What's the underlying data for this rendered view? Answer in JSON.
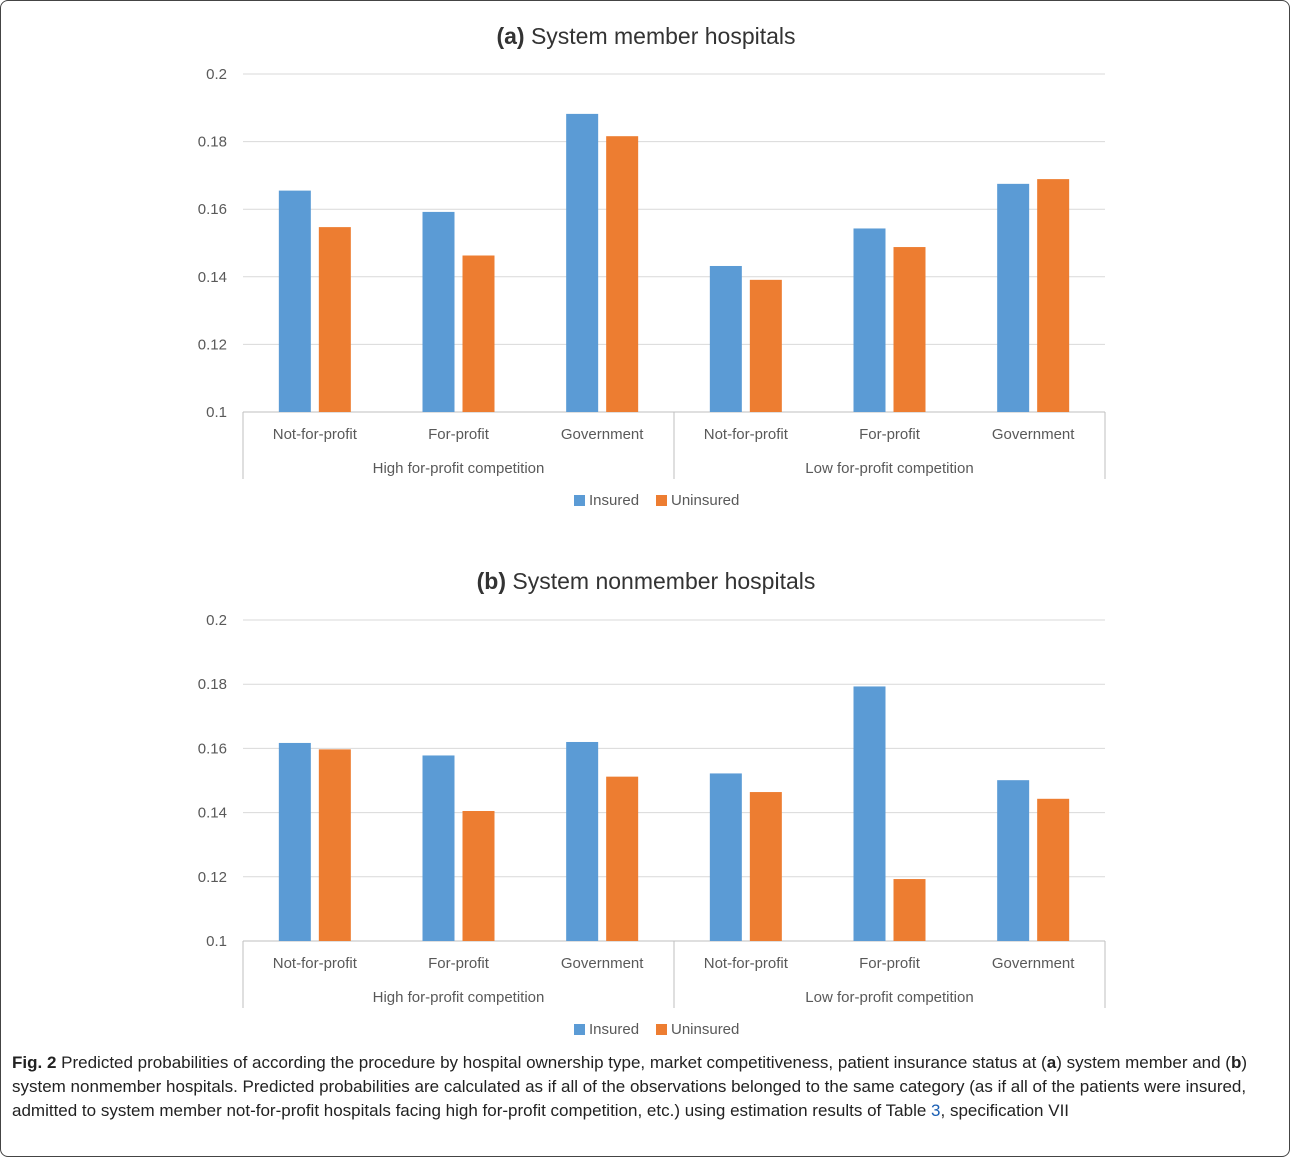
{
  "chart_data": [
    {
      "type": "bar",
      "title_prefix": "(a)",
      "title": "System member hospitals",
      "groups": [
        "High for-profit competition",
        "Low for-profit competition"
      ],
      "categories": [
        "Not-for-profit",
        "For-profit",
        "Government",
        "Not-for-profit",
        "For-profit",
        "Government"
      ],
      "series": [
        {
          "name": "Insured",
          "color": "#5b9bd5",
          "values": [
            0.1655,
            0.1592,
            0.1882,
            0.1432,
            0.1543,
            0.1675
          ]
        },
        {
          "name": "Uninsured",
          "color": "#ed7d31",
          "values": [
            0.1547,
            0.1463,
            0.1816,
            0.1391,
            0.1488,
            0.1689
          ]
        }
      ],
      "ylim": [
        0.1,
        0.2
      ],
      "yticks": [
        "0.1",
        "0.12",
        "0.14",
        "0.16",
        "0.18",
        "0.2"
      ],
      "grid": true,
      "legend": "bottom"
    },
    {
      "type": "bar",
      "title_prefix": "(b)",
      "title": "System nonmember hospitals",
      "groups": [
        "High for-profit competition",
        "Low for-profit competition"
      ],
      "categories": [
        "Not-for-profit",
        "For-profit",
        "Government",
        "Not-for-profit",
        "For-profit",
        "Government"
      ],
      "series": [
        {
          "name": "Insured",
          "color": "#5b9bd5",
          "values": [
            0.1617,
            0.1578,
            0.162,
            0.1522,
            0.1793,
            0.1501
          ]
        },
        {
          "name": "Uninsured",
          "color": "#ed7d31",
          "values": [
            0.1597,
            0.1405,
            0.1512,
            0.1464,
            0.1193,
            0.1443
          ]
        }
      ],
      "ylim": [
        0.1,
        0.2
      ],
      "yticks": [
        "0.1",
        "0.12",
        "0.14",
        "0.16",
        "0.18",
        "0.2"
      ],
      "grid": true,
      "legend": "bottom"
    }
  ],
  "caption": {
    "fig_label": "Fig. 2",
    "p1": " Predicted probabilities of according the procedure by hospital ownership type, market competitiveness, patient insurance status at (",
    "a": "a",
    "p2": ") system member and (",
    "b": "b",
    "p3": ") system nonmember hospitals. Predicted probabilities are calculated as if all of the observations belonged to the same category (as if all of the patients were insured, admitted to system member not-for-profit hospitals facing high for-profit competition, etc.) using estimation results of Table ",
    "table_ref": "3",
    "p4": ", specification VII"
  }
}
